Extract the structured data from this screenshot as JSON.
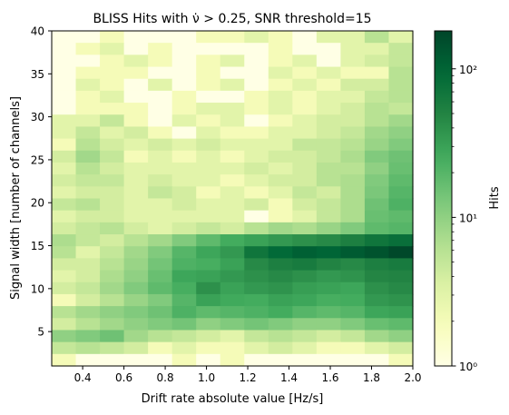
{
  "chart_data": {
    "type": "heatmap",
    "title": "BLISS Hits with ν̇ > 0.25, SNR threshold=15",
    "xlabel": "Drift rate absolute value [Hz/s]",
    "ylabel": "Signal width [number of channels]",
    "xlim": [
      0.25,
      2.0
    ],
    "ylim": [
      1,
      40
    ],
    "x_ticks": [
      0.4,
      0.6,
      0.8,
      1.0,
      1.2,
      1.4,
      1.6,
      1.8,
      2.0
    ],
    "x_tick_labels": [
      "0.4",
      "0.6",
      "0.8",
      "1.0",
      "1.2",
      "1.4",
      "1.6",
      "1.8",
      "2.0"
    ],
    "y_ticks": [
      5,
      10,
      15,
      20,
      25,
      30,
      35,
      40
    ],
    "y_tick_labels": [
      "5",
      "10",
      "15",
      "20",
      "25",
      "30",
      "35",
      "40"
    ],
    "x_bins": 15,
    "y_bins": 28,
    "colormap": "YlGn",
    "color_scale": "log",
    "colorbar": {
      "label": "Hits",
      "range": [
        1,
        180
      ],
      "major_tick_labels": [
        "10⁰",
        "10¹",
        "10²"
      ],
      "major_tick_values": [
        1,
        10,
        100
      ]
    },
    "counts_rows_from_top": [
      [
        1,
        1,
        2,
        1,
        1,
        1,
        2,
        2,
        3,
        2,
        1,
        3,
        3,
        6,
        3
      ],
      [
        1,
        2,
        3,
        1,
        2,
        1,
        1,
        1,
        1,
        2,
        1,
        1,
        3,
        3,
        5
      ],
      [
        1,
        1,
        2,
        3,
        2,
        1,
        2,
        3,
        1,
        2,
        3,
        1,
        3,
        4,
        5
      ],
      [
        1,
        2,
        2,
        2,
        1,
        1,
        2,
        1,
        1,
        3,
        2,
        3,
        2,
        2,
        6
      ],
      [
        1,
        3,
        2,
        1,
        3,
        1,
        2,
        3,
        1,
        2,
        3,
        2,
        4,
        4,
        6
      ],
      [
        1,
        2,
        3,
        1,
        1,
        2,
        1,
        1,
        2,
        3,
        2,
        3,
        3,
        5,
        6
      ],
      [
        1,
        2,
        2,
        2,
        1,
        2,
        3,
        3,
        2,
        3,
        2,
        3,
        4,
        6,
        5
      ],
      [
        3,
        3,
        5,
        2,
        1,
        3,
        2,
        3,
        1,
        2,
        3,
        4,
        4,
        6,
        8
      ],
      [
        3,
        5,
        3,
        4,
        2,
        1,
        3,
        2,
        2,
        3,
        3,
        4,
        5,
        8,
        10
      ],
      [
        2,
        6,
        4,
        3,
        4,
        3,
        4,
        3,
        3,
        3,
        5,
        5,
        6,
        9,
        12
      ],
      [
        4,
        8,
        5,
        2,
        3,
        2,
        3,
        2,
        3,
        4,
        4,
        5,
        7,
        12,
        15
      ],
      [
        3,
        6,
        4,
        3,
        3,
        3,
        3,
        3,
        4,
        3,
        4,
        6,
        6,
        10,
        16
      ],
      [
        4,
        5,
        5,
        3,
        4,
        3,
        3,
        2,
        3,
        4,
        4,
        6,
        7,
        12,
        18
      ],
      [
        3,
        4,
        4,
        3,
        5,
        4,
        2,
        3,
        2,
        3,
        5,
        4,
        7,
        13,
        20
      ],
      [
        5,
        6,
        4,
        3,
        3,
        4,
        3,
        3,
        4,
        2,
        4,
        5,
        7,
        15,
        22
      ],
      [
        3,
        4,
        4,
        3,
        3,
        3,
        3,
        3,
        1,
        2,
        3,
        5,
        7,
        16,
        18
      ],
      [
        4,
        5,
        6,
        4,
        3,
        4,
        5,
        4,
        6,
        8,
        7,
        9,
        12,
        18,
        20
      ],
      [
        7,
        5,
        4,
        6,
        8,
        12,
        18,
        25,
        30,
        35,
        40,
        45,
        55,
        70,
        80
      ],
      [
        6,
        3,
        5,
        8,
        12,
        20,
        28,
        35,
        70,
        90,
        110,
        100,
        120,
        140,
        170
      ],
      [
        4,
        4,
        6,
        9,
        14,
        22,
        24,
        30,
        45,
        55,
        60,
        50,
        45,
        55,
        60
      ],
      [
        3,
        4,
        7,
        10,
        16,
        28,
        30,
        35,
        40,
        45,
        40,
        35,
        38,
        48,
        50
      ],
      [
        4,
        5,
        8,
        12,
        18,
        24,
        40,
        30,
        35,
        38,
        32,
        30,
        28,
        40,
        45
      ],
      [
        2,
        4,
        6,
        9,
        12,
        20,
        30,
        26,
        25,
        30,
        28,
        24,
        25,
        35,
        38
      ],
      [
        6,
        8,
        10,
        12,
        15,
        22,
        18,
        20,
        22,
        25,
        20,
        18,
        20,
        28,
        30
      ],
      [
        4,
        6,
        8,
        10,
        12,
        14,
        10,
        12,
        14,
        12,
        10,
        10,
        12,
        16,
        18
      ],
      [
        10,
        12,
        15,
        8,
        6,
        5,
        4,
        3,
        5,
        6,
        5,
        4,
        5,
        8,
        10
      ],
      [
        5,
        6,
        5,
        4,
        2,
        3,
        2,
        2,
        3,
        4,
        3,
        2,
        2,
        3,
        4
      ],
      [
        2,
        1,
        1,
        1,
        1,
        2,
        1,
        2,
        1,
        1,
        1,
        1,
        1,
        1,
        2
      ]
    ]
  }
}
